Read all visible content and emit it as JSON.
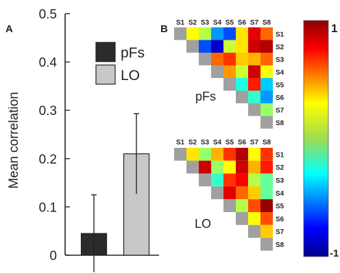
{
  "panels": {
    "a": {
      "label": "A"
    },
    "b": {
      "label": "B"
    }
  },
  "colorbar": {
    "max_label": "1",
    "min_label": "-1",
    "colormap": "jet"
  },
  "colors": {
    "pFs_bar": "#2b2b2b",
    "LO_bar": "#c8c8c8",
    "diag": "#a0a0a0"
  },
  "chart_data": [
    {
      "type": "bar",
      "panel": "A",
      "ylabel": "Mean correlation",
      "ylim": [
        0,
        0.5
      ],
      "yticks": [
        "0",
        "0.1",
        "0.2",
        "0.3",
        "0.4",
        "0.5"
      ],
      "categories": [
        "pFs",
        "LO"
      ],
      "values": [
        0.045,
        0.21
      ],
      "error": [
        0.08,
        0.083
      ],
      "legend": [
        "pFs",
        "LO"
      ],
      "legend_position": "top-right",
      "grid": false
    },
    {
      "type": "heatmap",
      "panel": "B",
      "title": "pFs",
      "shape": "upper-triangle",
      "x_labels": [
        "S1",
        "S2",
        "S3",
        "S4",
        "S5",
        "S6",
        "S7",
        "S8"
      ],
      "y_labels": [
        "S1",
        "S2",
        "S3",
        "S4",
        "S5",
        "S6",
        "S7",
        "S8"
      ],
      "values": [
        [
          null,
          0.25,
          0.1,
          -0.45,
          -0.6,
          0.3,
          0.8,
          0.55
        ],
        [
          null,
          null,
          -0.6,
          -0.85,
          0.15,
          0.3,
          0.85,
          0.9
        ],
        [
          null,
          null,
          null,
          0.55,
          0.65,
          0.35,
          0.4,
          0.55
        ],
        [
          null,
          null,
          null,
          null,
          0.45,
          0.15,
          0.85,
          0.25
        ],
        [
          null,
          null,
          null,
          null,
          null,
          -0.2,
          0.7,
          -0.35
        ],
        [
          null,
          null,
          null,
          null,
          null,
          null,
          -0.15,
          -0.45
        ],
        [
          null,
          null,
          null,
          null,
          null,
          null,
          null,
          0.05
        ],
        [
          null,
          null,
          null,
          null,
          null,
          null,
          null,
          null
        ]
      ],
      "vmin": -1,
      "vmax": 1
    },
    {
      "type": "heatmap",
      "panel": "B",
      "title": "LO",
      "shape": "upper-triangle",
      "x_labels": [
        "S1",
        "S2",
        "S3",
        "S4",
        "S5",
        "S6",
        "S7",
        "S8"
      ],
      "y_labels": [
        "S1",
        "S2",
        "S3",
        "S4",
        "S5",
        "S6",
        "S7",
        "S8"
      ],
      "values": [
        [
          null,
          0.3,
          0.05,
          0.4,
          0.65,
          0.9,
          0.25,
          0.65
        ],
        [
          null,
          null,
          0.85,
          0.05,
          0.25,
          0.85,
          0.4,
          0.7
        ],
        [
          null,
          null,
          null,
          -0.15,
          0.65,
          0.75,
          0.1,
          -0.05
        ],
        [
          null,
          null,
          null,
          null,
          0.8,
          0.55,
          0.35,
          -0.05
        ],
        [
          null,
          null,
          null,
          null,
          null,
          0.1,
          0.6,
          0.95
        ],
        [
          null,
          null,
          null,
          null,
          null,
          null,
          0.25,
          0.6
        ],
        [
          null,
          null,
          null,
          null,
          null,
          null,
          null,
          0.35
        ],
        [
          null,
          null,
          null,
          null,
          null,
          null,
          null,
          null
        ]
      ],
      "vmin": -1,
      "vmax": 1
    }
  ]
}
